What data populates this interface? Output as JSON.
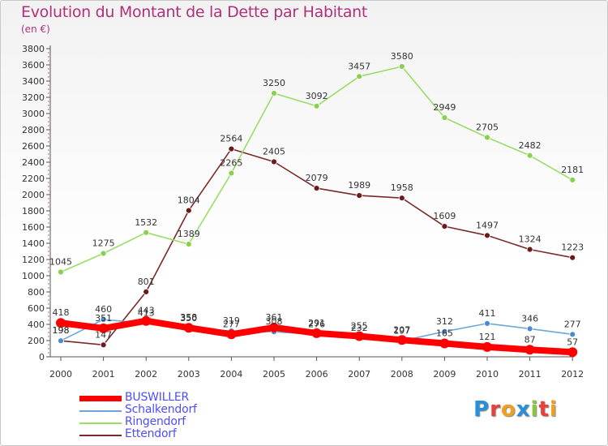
{
  "header": {
    "title": "Evolution du Montant de la Dette par Habitant",
    "unit": "(en €)"
  },
  "logo": [
    "P",
    "r",
    "o",
    "x",
    "i",
    "t",
    "i"
  ],
  "chart_data": {
    "type": "line",
    "title": "Evolution du Montant de la Dette par Habitant",
    "subtitle": "(en €)",
    "xlabel": "",
    "ylabel": "",
    "ylim": [
      0,
      3800
    ],
    "ytick_step": 200,
    "grid": false,
    "legend_position": "bottom-left",
    "categories": [
      "2000",
      "2001",
      "2002",
      "2003",
      "2004",
      "2005",
      "2006",
      "2007",
      "2008",
      "2009",
      "2010",
      "2011",
      "2012"
    ],
    "series": [
      {
        "name": "BUSWILLER",
        "color": "#ff0000",
        "values": [
          418,
          351,
          443,
          358,
          277,
          361,
          291,
          255,
          207,
          165,
          121,
          87,
          57
        ],
        "value_labels": [
          "418",
          "351",
          "443",
          "358",
          "277",
          "361",
          "291",
          "255",
          "207",
          "165",
          "121",
          "87",
          "57"
        ]
      },
      {
        "name": "Schalkendorf",
        "color": "#6ea6d8",
        "values": [
          198,
          460,
          413,
          350,
          319,
          308,
          276,
          232,
          197,
          312,
          411,
          346,
          277
        ],
        "value_labels": [
          "198",
          "460",
          "413",
          "350",
          "319",
          "308",
          "276",
          "232",
          "197",
          "312",
          "411",
          "346",
          "277"
        ]
      },
      {
        "name": "Ringendorf",
        "color": "#99dd66",
        "values": [
          1045,
          1275,
          1532,
          1389,
          2265,
          3250,
          3092,
          3457,
          3580,
          2949,
          2705,
          2482,
          2181
        ],
        "value_labels": [
          "1045",
          "1275",
          "1532",
          "1389",
          "2265",
          "3250",
          "3092",
          "3457",
          "3580",
          "2949",
          "2705",
          "2482",
          "2181"
        ]
      },
      {
        "name": "Ettendorf",
        "color": "#7a2a2a",
        "values": [
          198,
          147,
          801,
          1804,
          2564,
          2405,
          2079,
          1989,
          1958,
          1609,
          1497,
          1324,
          1223
        ],
        "value_labels": [
          "198",
          "147",
          "801",
          "1804",
          "2564",
          "2405",
          "2079",
          "1989",
          "1958",
          "1609",
          "1497",
          "1324",
          "1223"
        ]
      }
    ]
  }
}
